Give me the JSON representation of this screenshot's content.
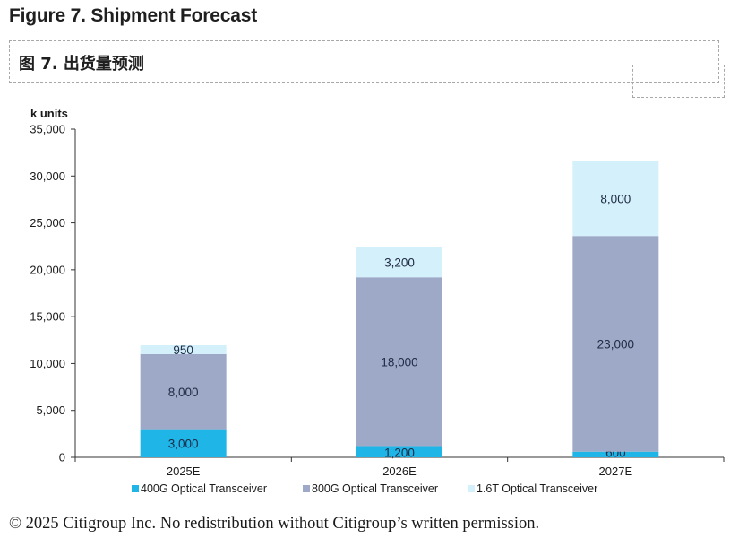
{
  "figure_title": "Figure 7. Shipment Forecast",
  "figure_title_cn": "图 7. 出货量预测",
  "footer": "© 2025 Citigroup Inc. No redistribution without Citigroup’s written permission.",
  "chart_data": {
    "type": "bar",
    "stacked": true,
    "ylabel": "k units",
    "ylim": [
      0,
      35000
    ],
    "yticks": [
      0,
      5000,
      10000,
      15000,
      20000,
      25000,
      30000,
      35000
    ],
    "ytick_labels": [
      "0",
      "5,000",
      "10,000",
      "15,000",
      "20,000",
      "25,000",
      "30,000",
      "35,000"
    ],
    "categories": [
      "2025E",
      "2026E",
      "2027E"
    ],
    "series": [
      {
        "name": "400G Optical Transceiver",
        "values": [
          3000,
          1200,
          600
        ],
        "labels": [
          "3,000",
          "1,200",
          "600"
        ],
        "color": "#1fb5e6"
      },
      {
        "name": "800G Optical Transceiver",
        "values": [
          8000,
          18000,
          23000
        ],
        "labels": [
          "8,000",
          "18,000",
          "23,000"
        ],
        "color": "#9ea9c7"
      },
      {
        "name": "1.6T Optical Transceiver",
        "values": [
          950,
          3200,
          8000
        ],
        "labels": [
          "950",
          "3,200",
          "8,000"
        ],
        "color": "#d3f0fb"
      }
    ],
    "legend_position": "bottom",
    "grid": false
  }
}
